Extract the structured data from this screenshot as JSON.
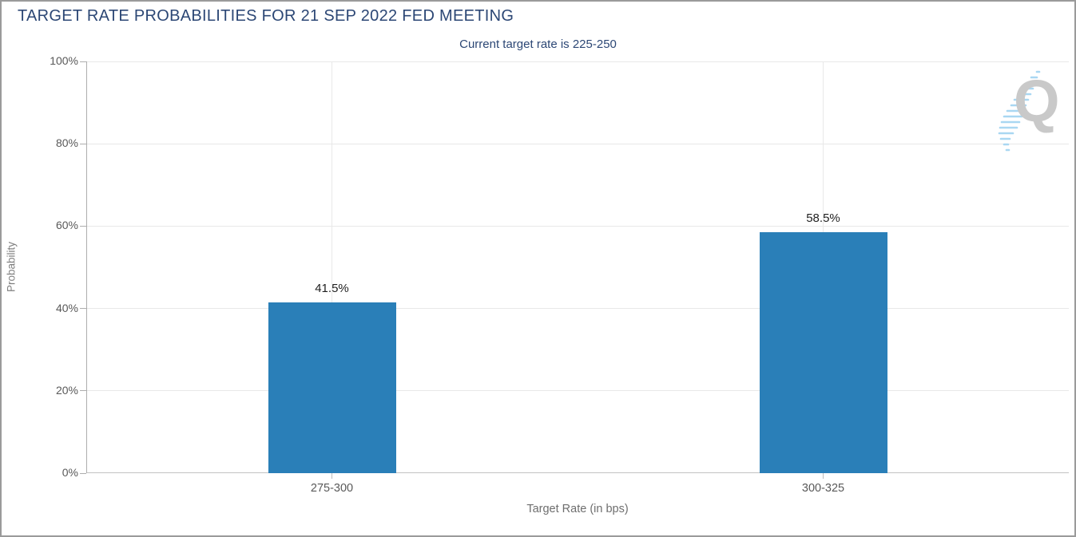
{
  "frame": {
    "border_color": "#9a9a9a",
    "background": "#ffffff"
  },
  "header": {
    "title": "TARGET RATE PROBABILITIES FOR 21 SEP 2022 FED MEETING",
    "subtitle": "Current target rate is 225-250",
    "title_color": "#2c4775"
  },
  "watermark": {
    "letter": "Q",
    "letter_color": "#c9c9c9",
    "stripe_color": "#a9d7f2"
  },
  "chart_data": {
    "type": "bar",
    "title": "TARGET RATE PROBABILITIES FOR 21 SEP 2022 FED MEETING",
    "subtitle": "Current target rate is 225-250",
    "categories": [
      "275-300",
      "300-325"
    ],
    "values": [
      41.5,
      58.5
    ],
    "value_labels": [
      "41.5%",
      "58.5%"
    ],
    "xlabel": "Target Rate (in bps)",
    "ylabel": "Probability",
    "ylim": [
      0,
      100
    ],
    "yticks": [
      0,
      20,
      40,
      60,
      80,
      100
    ],
    "ytick_labels": [
      "0%",
      "20%",
      "40%",
      "60%",
      "80%",
      "100%"
    ],
    "bar_color": "#2a7fb8",
    "grid": true,
    "legend_position": "none"
  }
}
